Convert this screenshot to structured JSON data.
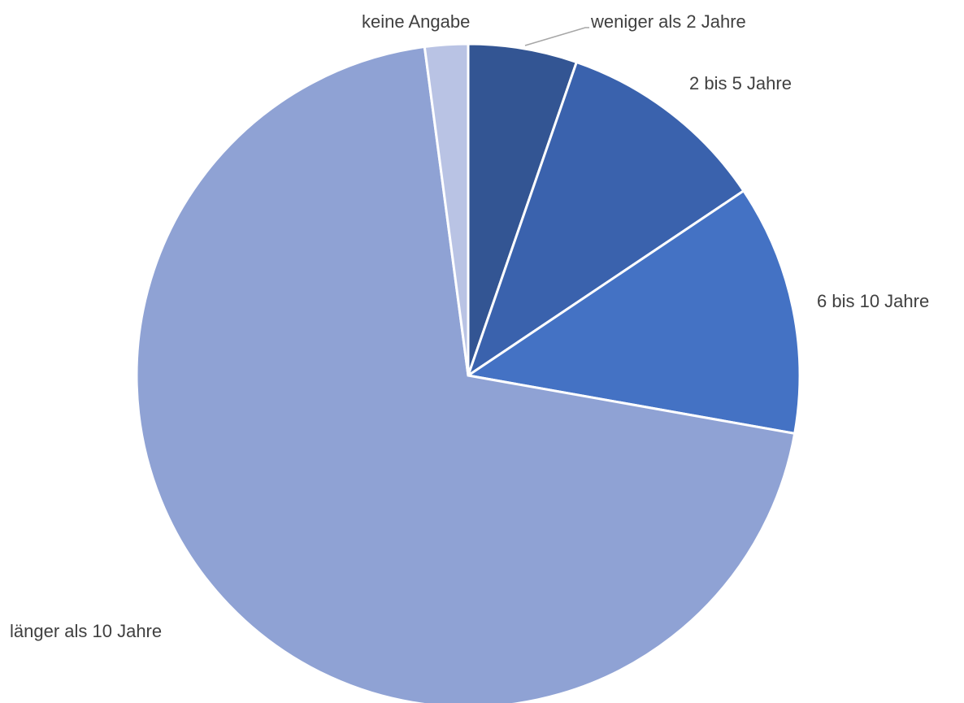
{
  "chart_data": {
    "type": "pie",
    "categories": [
      "weniger als 2 Jahre",
      "2 bis 5 Jahre",
      "6 bis 10 Jahre",
      "länger als 10 Jahre",
      "keine Angabe"
    ],
    "values": [
      5.3,
      10.3,
      12.2,
      70.1,
      2.1
    ],
    "colors": [
      "#335593",
      "#3a62ad",
      "#4472c4",
      "#8fa2d4",
      "#b9c3e4"
    ]
  }
}
